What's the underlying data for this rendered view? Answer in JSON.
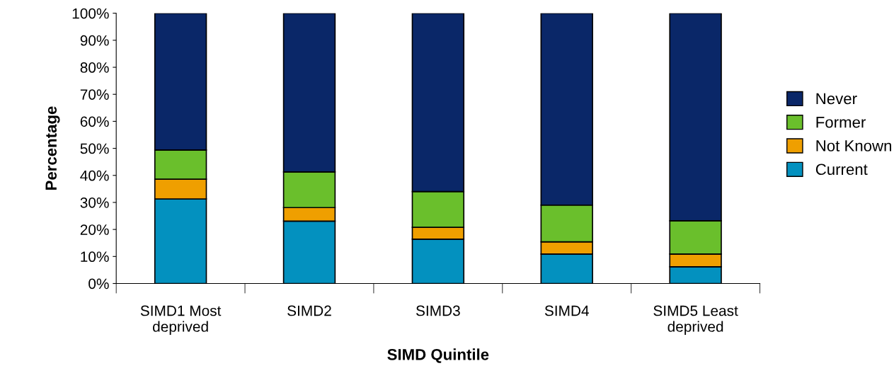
{
  "chart_data": {
    "type": "bar",
    "stacked": true,
    "xlabel": "SIMD Quintile",
    "ylabel": "Percentage",
    "categories": [
      "SIMD1 Most\ndeprived",
      "SIMD2",
      "SIMD3",
      "SIMD4",
      "SIMD5 Least\ndeprived"
    ],
    "series": [
      {
        "name": "Current",
        "color": "#0391bf",
        "values": [
          31.3,
          23.1,
          16.4,
          10.9,
          6.2
        ]
      },
      {
        "name": "Not Known",
        "color": "#ef9f00",
        "values": [
          7.3,
          5.0,
          4.4,
          4.5,
          4.7
        ]
      },
      {
        "name": "Former",
        "color": "#6abf2c",
        "values": [
          10.8,
          13.2,
          13.2,
          13.6,
          12.3
        ]
      },
      {
        "name": "Never",
        "color": "#0a2768",
        "values": [
          50.6,
          58.7,
          66.0,
          71.0,
          76.8
        ]
      }
    ],
    "ylim": [
      0,
      100
    ],
    "yticks": [
      {
        "value": 0,
        "label": "0%"
      },
      {
        "value": 10,
        "label": "10%"
      },
      {
        "value": 20,
        "label": "20%"
      },
      {
        "value": 30,
        "label": "30%"
      },
      {
        "value": 40,
        "label": "40%"
      },
      {
        "value": 50,
        "label": "50%"
      },
      {
        "value": 60,
        "label": "60%"
      },
      {
        "value": 70,
        "label": "70%"
      },
      {
        "value": 80,
        "label": "80%"
      },
      {
        "value": 90,
        "label": "90%"
      },
      {
        "value": 100,
        "label": "100%"
      }
    ],
    "grid": false,
    "legend": "right"
  }
}
